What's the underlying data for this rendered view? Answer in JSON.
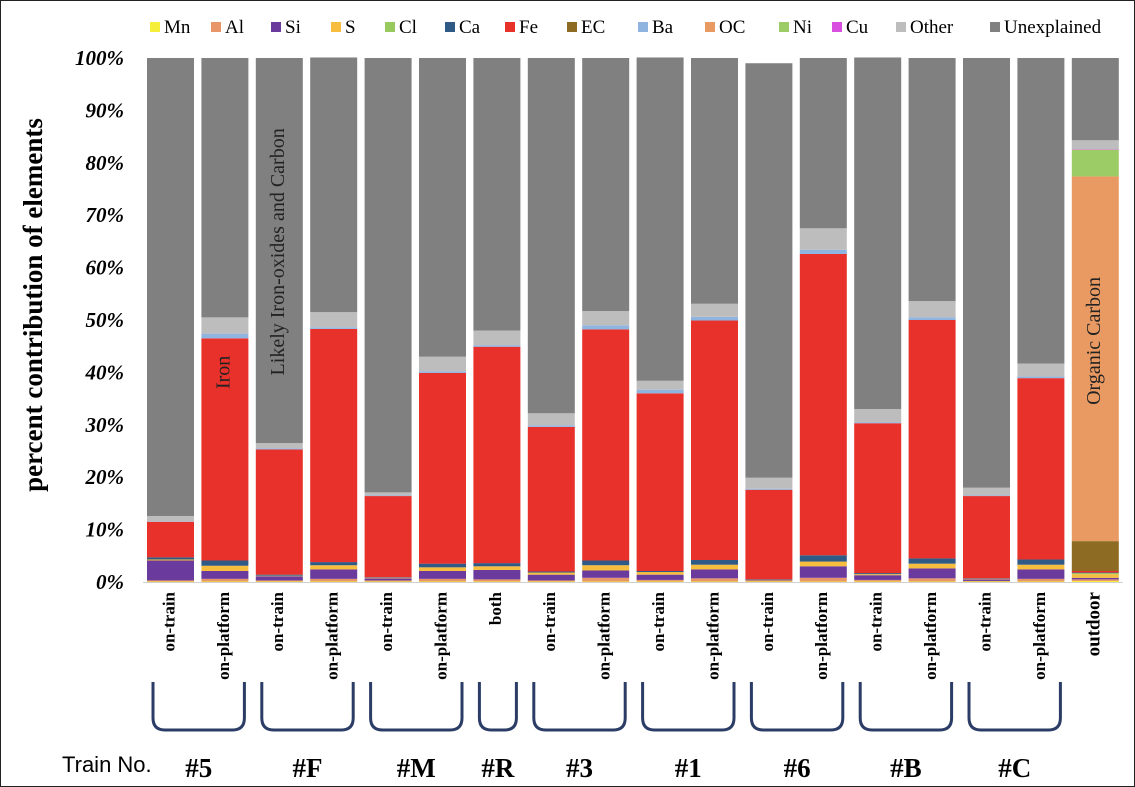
{
  "chart_data": {
    "type": "bar",
    "stacked": true,
    "ylabel": "percent contribution of elements",
    "xlabel": "",
    "ylim": [
      0,
      100
    ],
    "yticks": [
      "0%",
      "10%",
      "20%",
      "30%",
      "40%",
      "50%",
      "60%",
      "70%",
      "80%",
      "90%",
      "100%"
    ],
    "legend_position": "top",
    "categories": [
      "on-train",
      "on-platform",
      "on-train",
      "on-platform",
      "on-train",
      "on-platform",
      "both",
      "on-train",
      "on-platform",
      "on-train",
      "on-platform",
      "on-train",
      "on-platform",
      "on-train",
      "on-platform",
      "on-train",
      "on-platform",
      "outdoor"
    ],
    "groups": [
      {
        "label": "#5",
        "bars": [
          0,
          1
        ]
      },
      {
        "label": "#F",
        "bars": [
          2,
          3
        ]
      },
      {
        "label": "#M",
        "bars": [
          4,
          5
        ]
      },
      {
        "label": "#R",
        "bars": [
          6,
          6
        ]
      },
      {
        "label": "#3",
        "bars": [
          7,
          8
        ]
      },
      {
        "label": "#1",
        "bars": [
          9,
          10
        ]
      },
      {
        "label": "#6",
        "bars": [
          11,
          12
        ]
      },
      {
        "label": "#B",
        "bars": [
          13,
          14
        ]
      },
      {
        "label": "#C",
        "bars": [
          15,
          16
        ]
      }
    ],
    "group_prefix": "Train No.",
    "annotations": [
      {
        "text": "Iron",
        "bar": 1,
        "y": 40
      },
      {
        "text": "Likely Iron-oxides and Carbon",
        "bar": 2,
        "y": 63
      },
      {
        "text": "Organic Carbon",
        "bar": 17,
        "y": 46
      }
    ],
    "series": [
      {
        "name": "Mn",
        "color": "#f5ee3b",
        "values": [
          0.1,
          0.1,
          0.1,
          0.1,
          0.1,
          0.1,
          0.1,
          0.1,
          0.1,
          0.1,
          0.1,
          0.1,
          0.1,
          0.1,
          0.1,
          0.1,
          0.1,
          0.2
        ]
      },
      {
        "name": "Al",
        "color": "#e8956a",
        "values": [
          0.2,
          0.5,
          0.2,
          0.5,
          0.2,
          0.5,
          0.4,
          0.2,
          0.7,
          0.3,
          0.6,
          0.1,
          0.7,
          0.3,
          0.6,
          0.1,
          0.5,
          0.3
        ]
      },
      {
        "name": "Si",
        "color": "#6a3a9c",
        "values": [
          3.8,
          1.5,
          0.8,
          1.8,
          0.4,
          1.5,
          1.8,
          1.1,
          1.4,
          1.0,
          1.7,
          0.1,
          2.2,
          0.9,
          1.9,
          0.3,
          1.8,
          0.3
        ]
      },
      {
        "name": "S",
        "color": "#f6bd3f",
        "values": [
          0.2,
          1.0,
          0.1,
          0.8,
          0.1,
          0.7,
          0.7,
          0.4,
          1.0,
          0.5,
          0.9,
          0.1,
          0.9,
          0.2,
          0.9,
          0.1,
          0.9,
          0.7
        ]
      },
      {
        "name": "Cl",
        "color": "#98c95e",
        "values": [
          0,
          0,
          0,
          0,
          0,
          0,
          0,
          0,
          0,
          0,
          0,
          0,
          0,
          0,
          0,
          0,
          0,
          0.2
        ]
      },
      {
        "name": "Ca",
        "color": "#2f5a86",
        "values": [
          0.4,
          1.0,
          0.2,
          0.6,
          0.1,
          0.7,
          0.6,
          0.2,
          0.9,
          0.2,
          0.9,
          0.1,
          1.2,
          0.2,
          1.0,
          0.1,
          1.0,
          0.1
        ]
      },
      {
        "name": "Fe",
        "color": "#e8312a",
        "values": [
          6.8,
          42.4,
          23.9,
          44.5,
          15.5,
          36.4,
          41.3,
          27.6,
          44.1,
          33.9,
          45.7,
          17.1,
          57.5,
          28.6,
          45.5,
          15.7,
          34.6,
          0.3
        ]
      },
      {
        "name": "EC",
        "color": "#8e6b22",
        "values": [
          0,
          0,
          0,
          0,
          0,
          0,
          0,
          0,
          0,
          0,
          0,
          0,
          0,
          0,
          0,
          0,
          0,
          5.7
        ]
      },
      {
        "name": "Ba",
        "color": "#8fb4e0",
        "values": [
          0.1,
          0.9,
          0.2,
          0.3,
          0.1,
          0.3,
          0.3,
          0.3,
          0.8,
          0.7,
          0.7,
          0.2,
          0.8,
          0.2,
          0.5,
          0.1,
          0.3,
          0
        ]
      },
      {
        "name": "OC",
        "color": "#e99a62",
        "values": [
          0,
          0,
          0,
          0,
          0,
          0,
          0,
          0,
          0,
          0,
          0,
          0,
          0,
          0,
          0,
          0,
          0,
          69.6
        ]
      },
      {
        "name": "Ni",
        "color": "#9ccc65",
        "values": [
          0,
          0,
          0,
          0,
          0,
          0,
          0,
          0,
          0,
          0,
          0,
          0,
          0,
          0,
          0,
          0,
          0,
          5.1
        ]
      },
      {
        "name": "Cu",
        "color": "#d94fe0",
        "values": [
          0,
          0,
          0,
          0,
          0,
          0,
          0,
          0,
          0,
          0,
          0,
          0,
          0,
          0,
          0,
          0,
          0,
          0.1
        ]
      },
      {
        "name": "Other",
        "color": "#bdbdbd",
        "values": [
          1.0,
          3.1,
          1.0,
          2.9,
          0.6,
          2.8,
          2.8,
          2.3,
          2.7,
          1.7,
          2.5,
          2.1,
          4.1,
          2.5,
          3.1,
          1.5,
          2.5,
          1.7
        ]
      },
      {
        "name": "Unexplained",
        "color": "#808080",
        "values": [
          87.4,
          49.5,
          73.5,
          48.6,
          82.9,
          57.0,
          52.0,
          67.8,
          48.3,
          61.7,
          46.9,
          79.1,
          32.5,
          67.1,
          46.4,
          82.0,
          58.3,
          15.7
        ]
      }
    ]
  }
}
